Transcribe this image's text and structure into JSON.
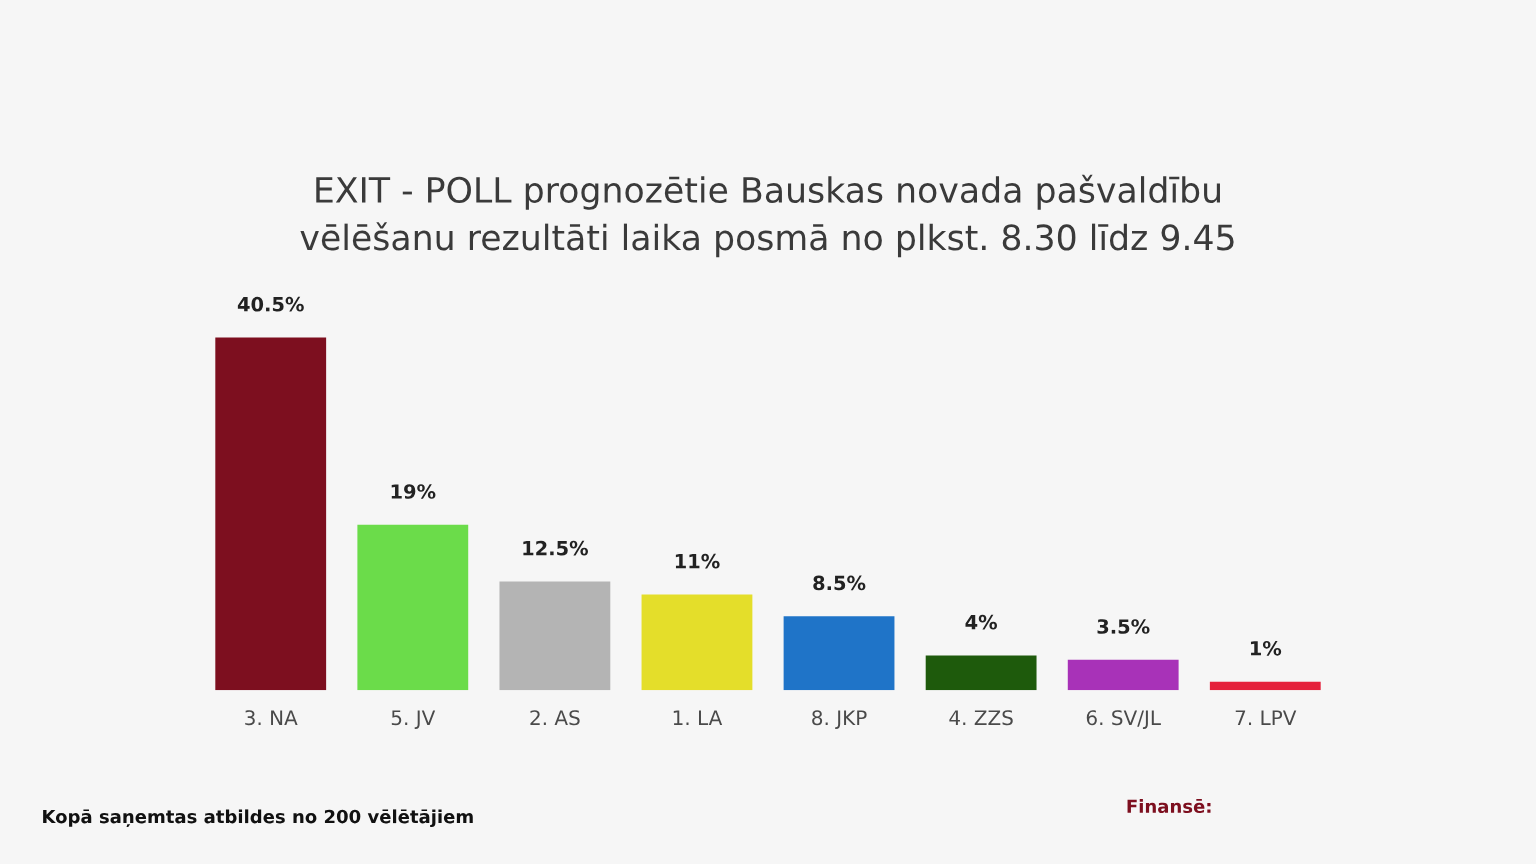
{
  "chart_data": {
    "type": "bar",
    "title": "EXIT - POLL prognozētie Bauskas novada pašvaldību vēlēšanu rezultāti laika posmā no plkst. 8.30 līdz 9.45",
    "categories": [
      "3. NA",
      "5. JV",
      "2. AS",
      "1. LA",
      "8. JKP",
      "4. ZZS",
      "6. SV/JL",
      "7. LPV"
    ],
    "values": [
      40.5,
      19,
      12.5,
      11,
      8.5,
      4,
      3.5,
      1
    ],
    "value_labels": [
      "40.5%",
      "19%",
      "12.5%",
      "11%",
      "8.5%",
      "4%",
      "3.5%",
      "1%"
    ],
    "colors": [
      "#7d0f1f",
      "#6bdc4a",
      "#b4b4b4",
      "#e4de2a",
      "#1f74c8",
      "#1e5a0c",
      "#a832b8",
      "#e5213b"
    ],
    "annotations": [
      "Kopā saņemtas atbildes no 200 vēlētājiem",
      "Finansē:"
    ]
  }
}
